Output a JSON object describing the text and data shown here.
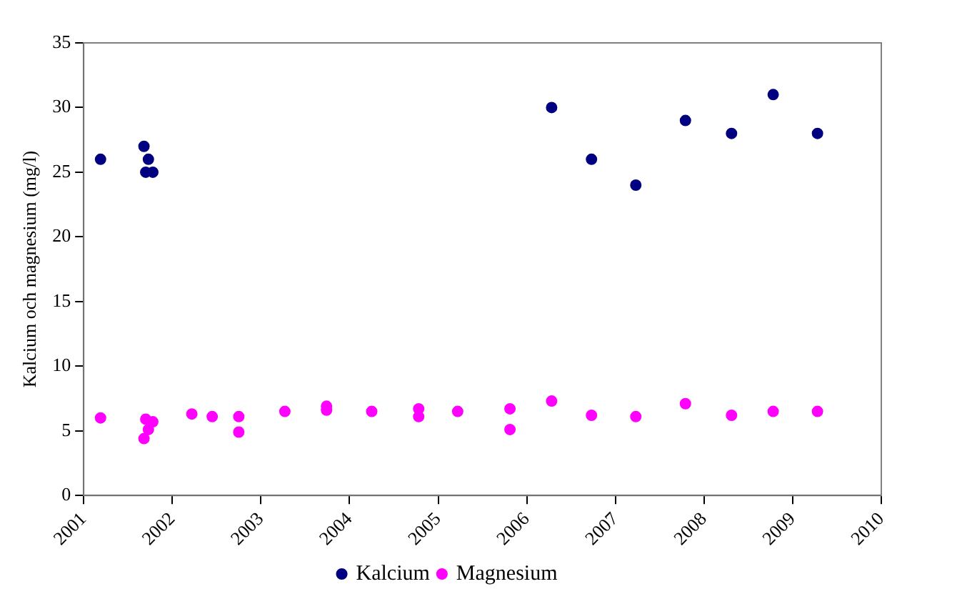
{
  "chart_data": {
    "type": "scatter",
    "ylabel": "Kalcium och magnesium (mg/l)",
    "xlim": [
      2001,
      2010
    ],
    "xticks": [
      2001,
      2002,
      2003,
      2004,
      2005,
      2006,
      2007,
      2008,
      2009,
      2010
    ],
    "ylim": [
      0,
      35
    ],
    "yticks": [
      0,
      5,
      10,
      15,
      20,
      25,
      30,
      35
    ],
    "grid": false,
    "legend": "bottom",
    "marker": "circle",
    "series": [
      {
        "name": "Kalcium",
        "color": "#000080",
        "x": [
          2001.19,
          2001.68,
          2001.73,
          2001.7,
          2001.78,
          2006.28,
          2006.73,
          2007.23,
          2007.79,
          2008.31,
          2008.78,
          2009.28
        ],
        "values": [
          26,
          27,
          26,
          25,
          25,
          30,
          26,
          24,
          29,
          28,
          31,
          28
        ]
      },
      {
        "name": "Magnesium",
        "color": "#ff00ff",
        "x": [
          2001.19,
          2001.68,
          2001.7,
          2001.73,
          2001.78,
          2002.22,
          2002.45,
          2002.75,
          2002.75,
          2003.27,
          2003.74,
          2003.74,
          2004.25,
          2004.78,
          2004.78,
          2005.22,
          2005.81,
          2005.81,
          2006.28,
          2006.73,
          2007.23,
          2007.79,
          2008.31,
          2008.78,
          2009.28
        ],
        "values": [
          6.0,
          4.4,
          5.9,
          5.1,
          5.7,
          6.3,
          6.1,
          6.1,
          4.9,
          6.5,
          6.9,
          6.6,
          6.5,
          6.7,
          6.1,
          6.5,
          6.7,
          5.1,
          7.3,
          6.2,
          6.1,
          7.1,
          6.2,
          6.5,
          6.5
        ]
      }
    ]
  }
}
